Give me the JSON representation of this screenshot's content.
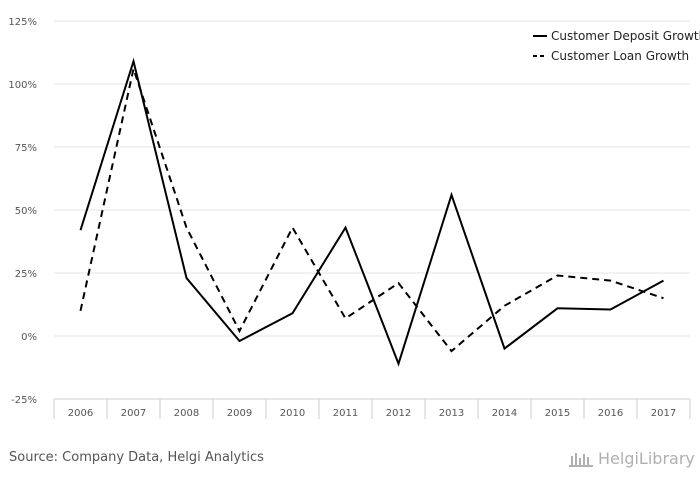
{
  "chart_data": {
    "type": "line",
    "categories": [
      "2006",
      "2007",
      "2008",
      "2009",
      "2010",
      "2011",
      "2012",
      "2013",
      "2014",
      "2015",
      "2016",
      "2017"
    ],
    "series": [
      {
        "name": "Customer Deposit Growth",
        "style": "solid",
        "values": [
          42,
          109,
          23,
          -2,
          9,
          43,
          -11,
          56,
          -5,
          11,
          10.5,
          22
        ]
      },
      {
        "name": "Customer Loan Growth",
        "style": "dashed",
        "values": [
          10,
          106,
          43,
          2,
          43,
          7,
          21,
          -6,
          12,
          24,
          22,
          15
        ]
      }
    ],
    "ylim": [
      -25,
      125
    ],
    "yticks": [
      125,
      100,
      75,
      50,
      25,
      0,
      -25
    ],
    "ytick_labels": [
      "125%",
      "100%",
      "75%",
      "50%",
      "25%",
      "0%",
      "-25%"
    ],
    "legend_position": "top-right",
    "grid": true,
    "colors": {
      "line": "#000000",
      "grid": "#e6e6e6",
      "axis": "#cccccc"
    }
  },
  "footer": {
    "source": "Source: Company Data, Helgi Analytics",
    "brand": "HelgiLibrary"
  }
}
